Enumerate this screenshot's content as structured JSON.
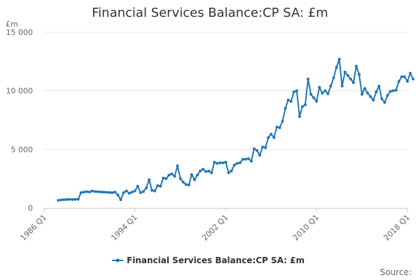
{
  "chart_data": {
    "type": "line",
    "title": "Financial Services Balance:CP SA: £m",
    "yunit": "£m",
    "source": "Source:",
    "ylim": [
      0,
      15000
    ],
    "yticks": [
      {
        "value": 0,
        "label": "0"
      },
      {
        "value": 5000,
        "label": "5 000"
      },
      {
        "value": 10000,
        "label": "10 000"
      },
      {
        "value": 15000,
        "label": "15 000"
      }
    ],
    "xticks": [
      "1986 Q1",
      "1994 Q1",
      "2002 Q1",
      "2010 Q1",
      "2018 Q1"
    ],
    "x_start": "1986 Q1",
    "x_end": "2018 Q1",
    "grid": "horizontal",
    "legend": "bottom-center",
    "series": [
      {
        "name": "Financial Services Balance:CP SA: £m",
        "color": "#1f77b4",
        "start": "1987 Q2",
        "values": [
          650,
          680,
          700,
          720,
          730,
          720,
          730,
          740,
          1300,
          1350,
          1380,
          1360,
          1450,
          1400,
          1380,
          1360,
          1350,
          1330,
          1320,
          1300,
          1350,
          1100,
          700,
          1300,
          1450,
          1250,
          1350,
          1450,
          1850,
          1300,
          1400,
          1700,
          2400,
          1500,
          1450,
          1900,
          1850,
          2550,
          2500,
          2800,
          2900,
          2700,
          3600,
          2500,
          2200,
          2000,
          1950,
          2850,
          2400,
          2800,
          3150,
          3300,
          3100,
          3150,
          3000,
          3900,
          3800,
          3850,
          3850,
          3900,
          3000,
          3150,
          3650,
          3800,
          3850,
          4150,
          4150,
          4200,
          4000,
          5050,
          4900,
          4500,
          5200,
          5150,
          6000,
          6300,
          6000,
          6900,
          6850,
          7400,
          8500,
          9200,
          9100,
          9900,
          10000,
          7800,
          8650,
          8800,
          11000,
          9700,
          9400,
          9100,
          10300,
          9800,
          10000,
          9750,
          10400,
          11100,
          12000,
          12700,
          10400,
          11600,
          11300,
          11000,
          10700,
          12100,
          11400,
          9700,
          10200,
          9800,
          9500,
          9200,
          9900,
          10400,
          9300,
          9000,
          9600,
          9950,
          10000,
          10050,
          10800,
          11200,
          11200,
          10800,
          11500,
          11000
        ]
      }
    ]
  }
}
